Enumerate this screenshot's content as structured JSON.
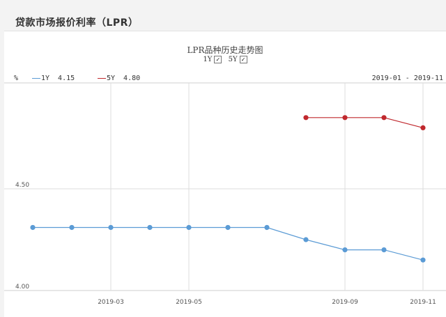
{
  "header": {
    "title": "贷款市场报价利率（LPR）"
  },
  "chart_data": {
    "type": "line",
    "title": "LPR品种历史走势图",
    "toggles": [
      {
        "label": "1Y",
        "checked": true,
        "mark": "✓"
      },
      {
        "label": "5Y",
        "checked": true,
        "mark": "✓"
      }
    ],
    "unit": "%",
    "date_range": "2019-01 - 2019-11",
    "series": [
      {
        "name": "1Y",
        "latest": "4.15",
        "color": "#5b9bd5",
        "points": [
          [
            "2019-01",
            4.31
          ],
          [
            "2019-02",
            4.31
          ],
          [
            "2019-03",
            4.31
          ],
          [
            "2019-04",
            4.31
          ],
          [
            "2019-05",
            4.31
          ],
          [
            "2019-06",
            4.31
          ],
          [
            "2019-07",
            4.31
          ],
          [
            "2019-08",
            4.25
          ],
          [
            "2019-09",
            4.2
          ],
          [
            "2019-10",
            4.2
          ],
          [
            "2019-11",
            4.15
          ]
        ]
      },
      {
        "name": "5Y",
        "latest": "4.80",
        "color": "#c0282d",
        "points": [
          [
            "2019-08",
            4.85
          ],
          [
            "2019-09",
            4.85
          ],
          [
            "2019-10",
            4.85
          ],
          [
            "2019-11",
            4.8
          ]
        ]
      }
    ],
    "x_ticks": [
      "2019-03",
      "2019-05",
      "2019-09",
      "2019-11"
    ],
    "y_ticks": [
      "4.00",
      "4.50"
    ],
    "ylim": [
      4.0,
      5.0
    ],
    "xlim": [
      "2019-01",
      "2019-11"
    ],
    "grid": true,
    "legend": "top-left"
  }
}
